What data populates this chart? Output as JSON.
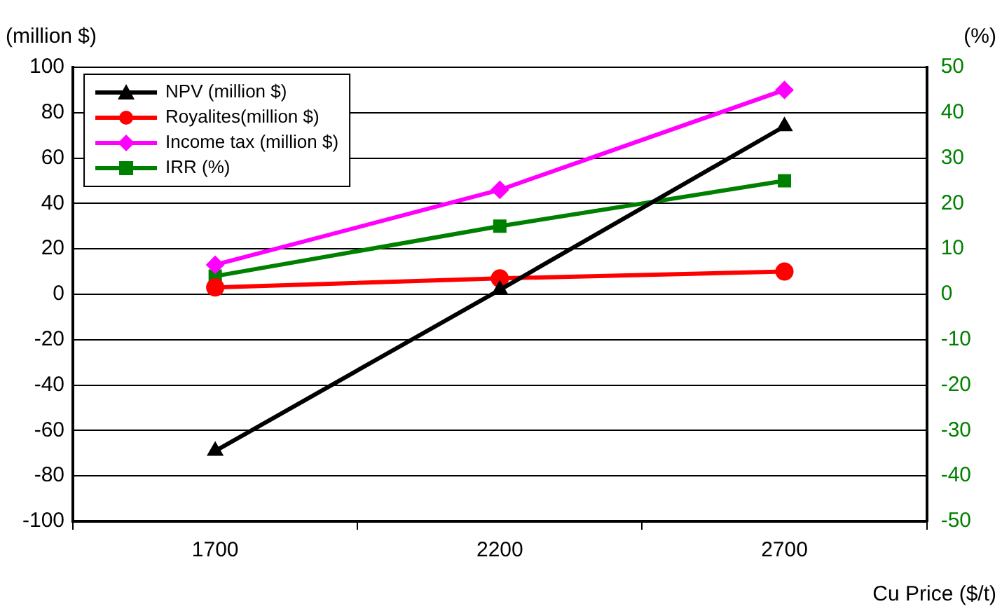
{
  "chart_data": {
    "type": "line",
    "categories": [
      "1700",
      "2200",
      "2700"
    ],
    "ylabel": "(million $)",
    "y2label": "(%)",
    "xlabel": "Cu Price ($/t)",
    "ylim": [
      -100,
      100
    ],
    "yticks": [
      -100,
      -80,
      -60,
      -40,
      -20,
      0,
      20,
      40,
      60,
      80,
      100
    ],
    "y2lim": [
      -50,
      50
    ],
    "y2ticks": [
      -50,
      -40,
      -30,
      -20,
      -10,
      0,
      10,
      20,
      30,
      40,
      50
    ],
    "grid": "y",
    "legend": "top left",
    "series": [
      {
        "name": "NPV (million $)",
        "color": "#000000",
        "marker": "triangle",
        "values": [
          -69,
          2,
          74
        ]
      },
      {
        "name": "Royalites(million $)",
        "color": "#ff0000",
        "marker": "circle",
        "values": [
          3,
          7,
          10
        ]
      },
      {
        "name": "Income tax (million $)",
        "color": "#ff00ff",
        "marker": "diamond",
        "values": [
          13,
          46,
          90
        ]
      },
      {
        "name": "IRR (%)",
        "color": "#008000",
        "marker": "square",
        "axis": "y2",
        "values": [
          4,
          15,
          25
        ]
      }
    ]
  }
}
